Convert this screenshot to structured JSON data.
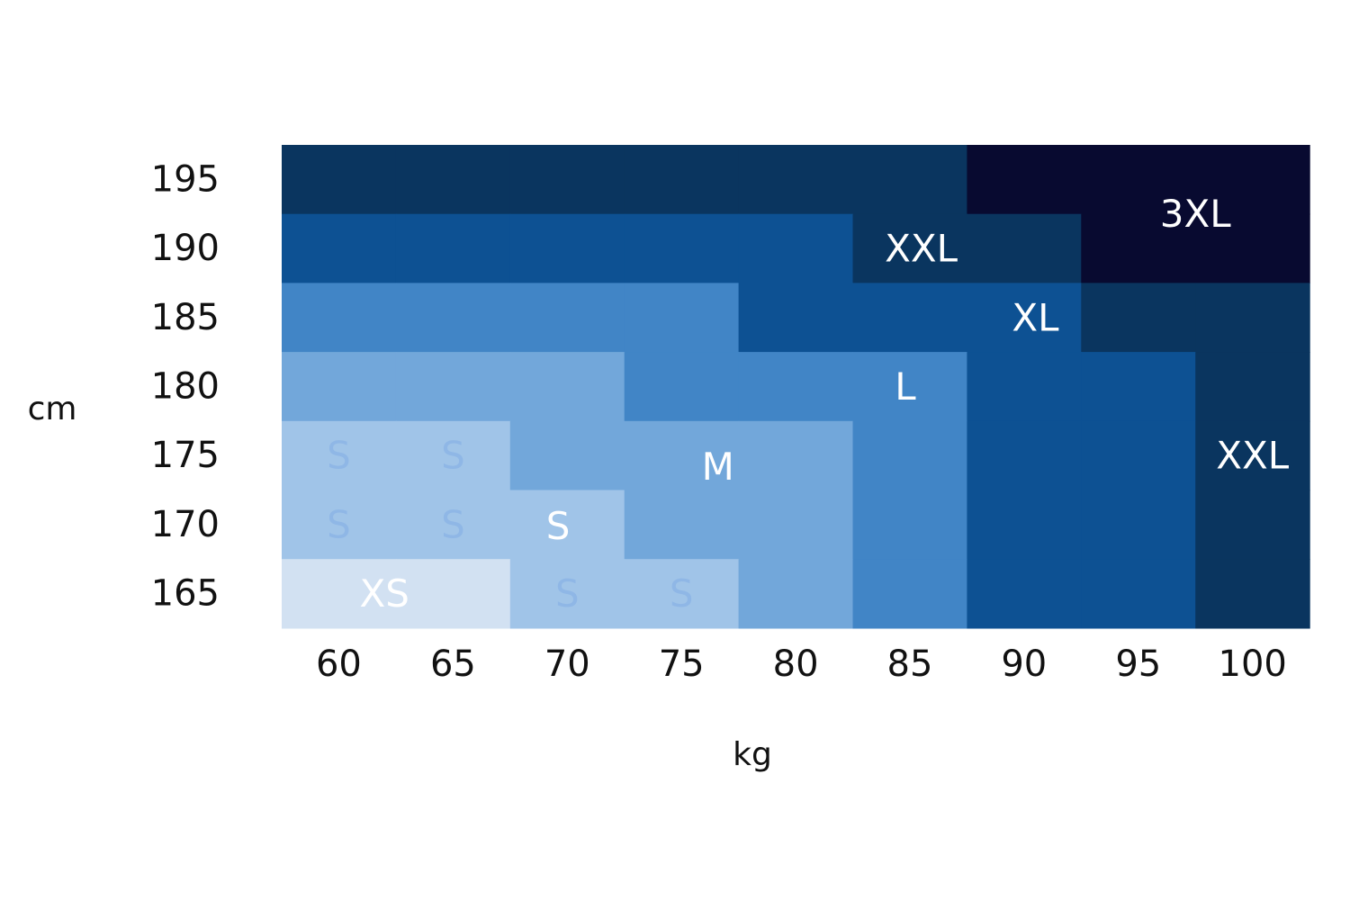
{
  "chart_data": {
    "type": "heatmap",
    "title": "",
    "xlabel": "kg",
    "ylabel": "cm",
    "x": [
      60,
      65,
      70,
      75,
      80,
      85,
      90,
      95,
      100
    ],
    "y": [
      195,
      190,
      185,
      180,
      175,
      170,
      165
    ],
    "levels": [
      "XS",
      "S",
      "M",
      "L",
      "XL",
      "XXL",
      "3XL"
    ],
    "colors": {
      "XS": "#d2e1f2",
      "S": "#a0c4e8",
      "M": "#72a7da",
      "L": "#4185c6",
      "XL": "#0d5193",
      "XXL": "#0a355f",
      "3XL": "#080a30"
    },
    "grid": [
      [
        "XXL",
        "XXL",
        "XXL",
        "XXL",
        "XXL",
        "XXL",
        "3XL",
        "3XL",
        "3XL"
      ],
      [
        "XL",
        "XL",
        "XL",
        "XL",
        "XL",
        "XXL",
        "XXL",
        "3XL",
        "3XL"
      ],
      [
        "L",
        "L",
        "L",
        "L",
        "XL",
        "XL",
        "XL",
        "XXL",
        "XXL"
      ],
      [
        "M",
        "M",
        "M",
        "L",
        "L",
        "L",
        "XL",
        "XL",
        "XXL"
      ],
      [
        "S",
        "S",
        "M",
        "M",
        "M",
        "L",
        "XL",
        "XL",
        "XXL"
      ],
      [
        "S",
        "S",
        "S",
        "M",
        "M",
        "L",
        "XL",
        "XL",
        "XXL"
      ],
      [
        "XS",
        "XS",
        "S",
        "S",
        "M",
        "L",
        "XL",
        "XL",
        "XXL"
      ]
    ],
    "annotations": [
      {
        "text": "3XL",
        "x": 97.5,
        "y": 192.5,
        "color": "#ffffff"
      },
      {
        "text": "XXL",
        "x": 85.5,
        "y": 190,
        "color": "#ffffff"
      },
      {
        "text": "XL",
        "x": 90.5,
        "y": 185,
        "color": "#ffffff"
      },
      {
        "text": "L",
        "x": 84.8,
        "y": 180,
        "color": "#ffffff"
      },
      {
        "text": "XXL",
        "x": 100,
        "y": 175,
        "color": "#ffffff"
      },
      {
        "text": "M",
        "x": 76.6,
        "y": 174.2,
        "color": "#ffffff"
      },
      {
        "text": "S",
        "x": 69.6,
        "y": 169.9,
        "color": "#ffffff"
      },
      {
        "text": "XS",
        "x": 62,
        "y": 165,
        "color": "#ffffff"
      },
      {
        "text": "S",
        "x": 60,
        "y": 175,
        "color": "#8fb7e6"
      },
      {
        "text": "S",
        "x": 65,
        "y": 175,
        "color": "#8fb7e6"
      },
      {
        "text": "S",
        "x": 60,
        "y": 170,
        "color": "#8fb7e6"
      },
      {
        "text": "S",
        "x": 65,
        "y": 170,
        "color": "#8fb7e6"
      },
      {
        "text": "S",
        "x": 70,
        "y": 165,
        "color": "#8fb7e6"
      },
      {
        "text": "S",
        "x": 75,
        "y": 165,
        "color": "#8fb7e6"
      }
    ]
  }
}
